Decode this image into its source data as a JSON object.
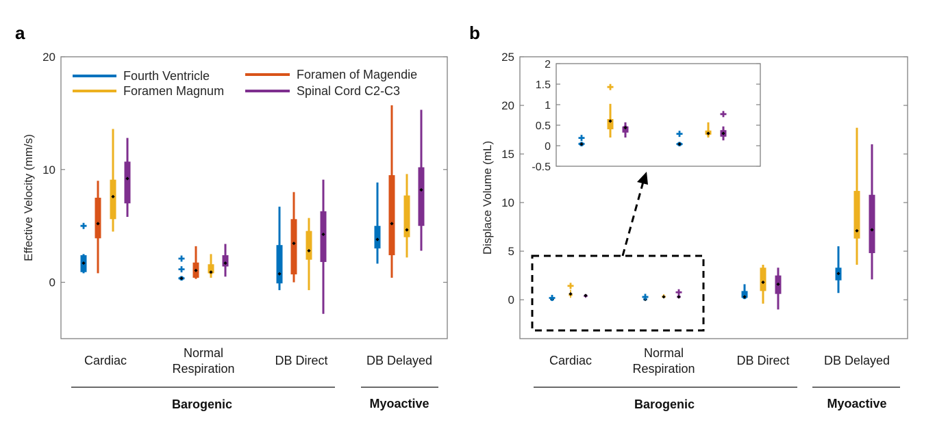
{
  "colors": {
    "Fourth Ventricle": "#0072BD",
    "Foramen of Magendie": "#D95319",
    "Foramen Magnum": "#EDB120",
    "Spinal Cord C2-C3": "#7E2F8E",
    "axis": "#808080"
  },
  "chart_data": [
    {
      "panel": "a",
      "type": "boxplot",
      "ylabel": "Effective Velocity  (mm/s)",
      "ylim": [
        -5,
        20
      ],
      "yticks": [
        0,
        10,
        20
      ],
      "categories": [
        "Cardiac",
        "Normal Respiration",
        "DB Direct",
        "DB Delayed"
      ],
      "category_labels": [
        [
          "Cardiac"
        ],
        [
          "Normal",
          "Respiration"
        ],
        [
          "DB Direct"
        ],
        [
          "DB Delayed"
        ]
      ],
      "groups": [
        {
          "label": "Barogenic",
          "categories": [
            "Cardiac",
            "Normal Respiration",
            "DB Direct"
          ]
        },
        {
          "label": "Myoactive",
          "categories": [
            "DB Delayed"
          ]
        }
      ],
      "legend": {
        "position": "top",
        "entries": [
          "Fourth Ventricle",
          "Foramen Magnum",
          "Foramen of Magendie",
          "Spinal Cord C2-C3"
        ]
      },
      "series": [
        {
          "name": "Fourth Ventricle",
          "boxes": [
            {
              "min": 0.8,
              "q1": 0.9,
              "median": 1.7,
              "q3": 2.4,
              "max": 2.5,
              "outliers": [
                5.0
              ]
            },
            {
              "min": 0.35,
              "q1": 0.35,
              "median": 0.35,
              "q3": 0.35,
              "max": 0.35,
              "outliers": [
                1.15,
                2.1
              ]
            },
            {
              "min": -0.7,
              "q1": -0.1,
              "median": 0.75,
              "q3": 3.3,
              "max": 6.7,
              "outliers": []
            },
            {
              "min": 1.65,
              "q1": 3.0,
              "median": 3.8,
              "q3": 5.0,
              "max": 8.85,
              "outliers": []
            }
          ]
        },
        {
          "name": "Foramen of Magendie",
          "boxes": [
            {
              "min": 0.8,
              "q1": 3.9,
              "median": 5.2,
              "q3": 7.5,
              "max": 9.0,
              "outliers": []
            },
            {
              "min": 0.3,
              "q1": 0.4,
              "median": 1.05,
              "q3": 1.75,
              "max": 3.2,
              "outliers": []
            },
            {
              "min": 0.0,
              "q1": 0.7,
              "median": 3.45,
              "q3": 5.6,
              "max": 8.0,
              "outliers": []
            },
            {
              "min": 0.4,
              "q1": 2.4,
              "median": 5.2,
              "q3": 9.5,
              "max": 15.7,
              "outliers": []
            }
          ]
        },
        {
          "name": "Foramen Magnum",
          "boxes": [
            {
              "min": 4.5,
              "q1": 5.6,
              "median": 7.6,
              "q3": 9.1,
              "max": 13.6,
              "outliers": []
            },
            {
              "min": 0.4,
              "q1": 0.8,
              "median": 0.9,
              "q3": 1.6,
              "max": 2.5,
              "outliers": []
            },
            {
              "min": -0.7,
              "q1": 2.0,
              "median": 2.8,
              "q3": 4.55,
              "max": 5.7,
              "outliers": []
            },
            {
              "min": 2.2,
              "q1": 4.0,
              "median": 4.65,
              "q3": 7.7,
              "max": 9.6,
              "outliers": []
            }
          ]
        },
        {
          "name": "Spinal Cord C2-C3",
          "boxes": [
            {
              "min": 5.8,
              "q1": 7.0,
              "median": 9.2,
              "q3": 10.7,
              "max": 12.8,
              "outliers": []
            },
            {
              "min": 0.5,
              "q1": 1.4,
              "median": 1.7,
              "q3": 2.4,
              "max": 3.4,
              "outliers": []
            },
            {
              "min": -2.8,
              "q1": 1.8,
              "median": 4.25,
              "q3": 6.3,
              "max": 9.1,
              "outliers": []
            },
            {
              "min": 2.8,
              "q1": 5.0,
              "median": 8.2,
              "q3": 10.2,
              "max": 15.3,
              "outliers": []
            }
          ]
        }
      ]
    },
    {
      "panel": "b",
      "type": "boxplot",
      "ylabel": "Displace Volume (mL)",
      "ylim": [
        -4,
        25
      ],
      "yticks": [
        0,
        5,
        10,
        15,
        20,
        25
      ],
      "categories": [
        "Cardiac",
        "Normal Respiration",
        "DB Direct",
        "DB Delayed"
      ],
      "category_labels": [
        [
          "Cardiac"
        ],
        [
          "Normal",
          "Respiration"
        ],
        [
          "DB Direct"
        ],
        [
          "DB Delayed"
        ]
      ],
      "groups": [
        {
          "label": "Barogenic",
          "categories": [
            "Cardiac",
            "Normal Respiration",
            "DB Direct"
          ]
        },
        {
          "label": "Myoactive",
          "categories": [
            "DB Delayed"
          ]
        }
      ],
      "inset": {
        "ylim": [
          -0.5,
          2
        ],
        "yticks": [
          -0.5,
          0,
          0.5,
          1,
          1.5,
          2
        ],
        "categories": [
          "Cardiac",
          "Normal Respiration"
        ],
        "zoom_region_ylim": [
          -3.1,
          4.5
        ]
      },
      "series": [
        {
          "name": "Fourth Ventricle",
          "boxes": [
            {
              "min": 0.04,
              "q1": 0.04,
              "median": 0.04,
              "q3": 0.05,
              "max": 0.05,
              "outliers": [
                0.19
              ]
            },
            {
              "min": 0.04,
              "q1": 0.04,
              "median": 0.04,
              "q3": 0.04,
              "max": 0.04,
              "outliers": [
                0.29
              ]
            },
            {
              "min": 0.1,
              "q1": 0.2,
              "median": 0.3,
              "q3": 0.9,
              "max": 1.6,
              "outliers": []
            },
            {
              "min": 0.7,
              "q1": 2.0,
              "median": 2.7,
              "q3": 3.3,
              "max": 5.5,
              "outliers": []
            }
          ]
        },
        {
          "name": "Foramen Magnum",
          "boxes": [
            {
              "min": 0.2,
              "q1": 0.4,
              "median": 0.6,
              "q3": 0.65,
              "max": 1.02,
              "outliers": [
                1.43
              ]
            },
            {
              "min": 0.2,
              "q1": 0.27,
              "median": 0.3,
              "q3": 0.37,
              "max": 0.57,
              "outliers": []
            },
            {
              "min": -0.4,
              "q1": 0.9,
              "median": 1.8,
              "q3": 3.3,
              "max": 3.6,
              "outliers": []
            },
            {
              "min": 3.6,
              "q1": 6.3,
              "median": 7.1,
              "q3": 11.2,
              "max": 17.7,
              "outliers": []
            }
          ]
        },
        {
          "name": "Spinal Cord C2-C3",
          "boxes": [
            {
              "min": 0.2,
              "q1": 0.32,
              "median": 0.44,
              "q3": 0.47,
              "max": 0.57,
              "outliers": []
            },
            {
              "min": 0.13,
              "q1": 0.22,
              "median": 0.3,
              "q3": 0.38,
              "max": 0.47,
              "outliers": [
                0.77
              ]
            },
            {
              "min": -1.0,
              "q1": 0.6,
              "median": 1.6,
              "q3": 2.5,
              "max": 3.3,
              "outliers": []
            },
            {
              "min": 2.1,
              "q1": 4.8,
              "median": 7.2,
              "q3": 10.8,
              "max": 16.0,
              "outliers": []
            }
          ]
        }
      ]
    }
  ],
  "figure": {
    "panel_labels": [
      "a",
      "b"
    ]
  }
}
